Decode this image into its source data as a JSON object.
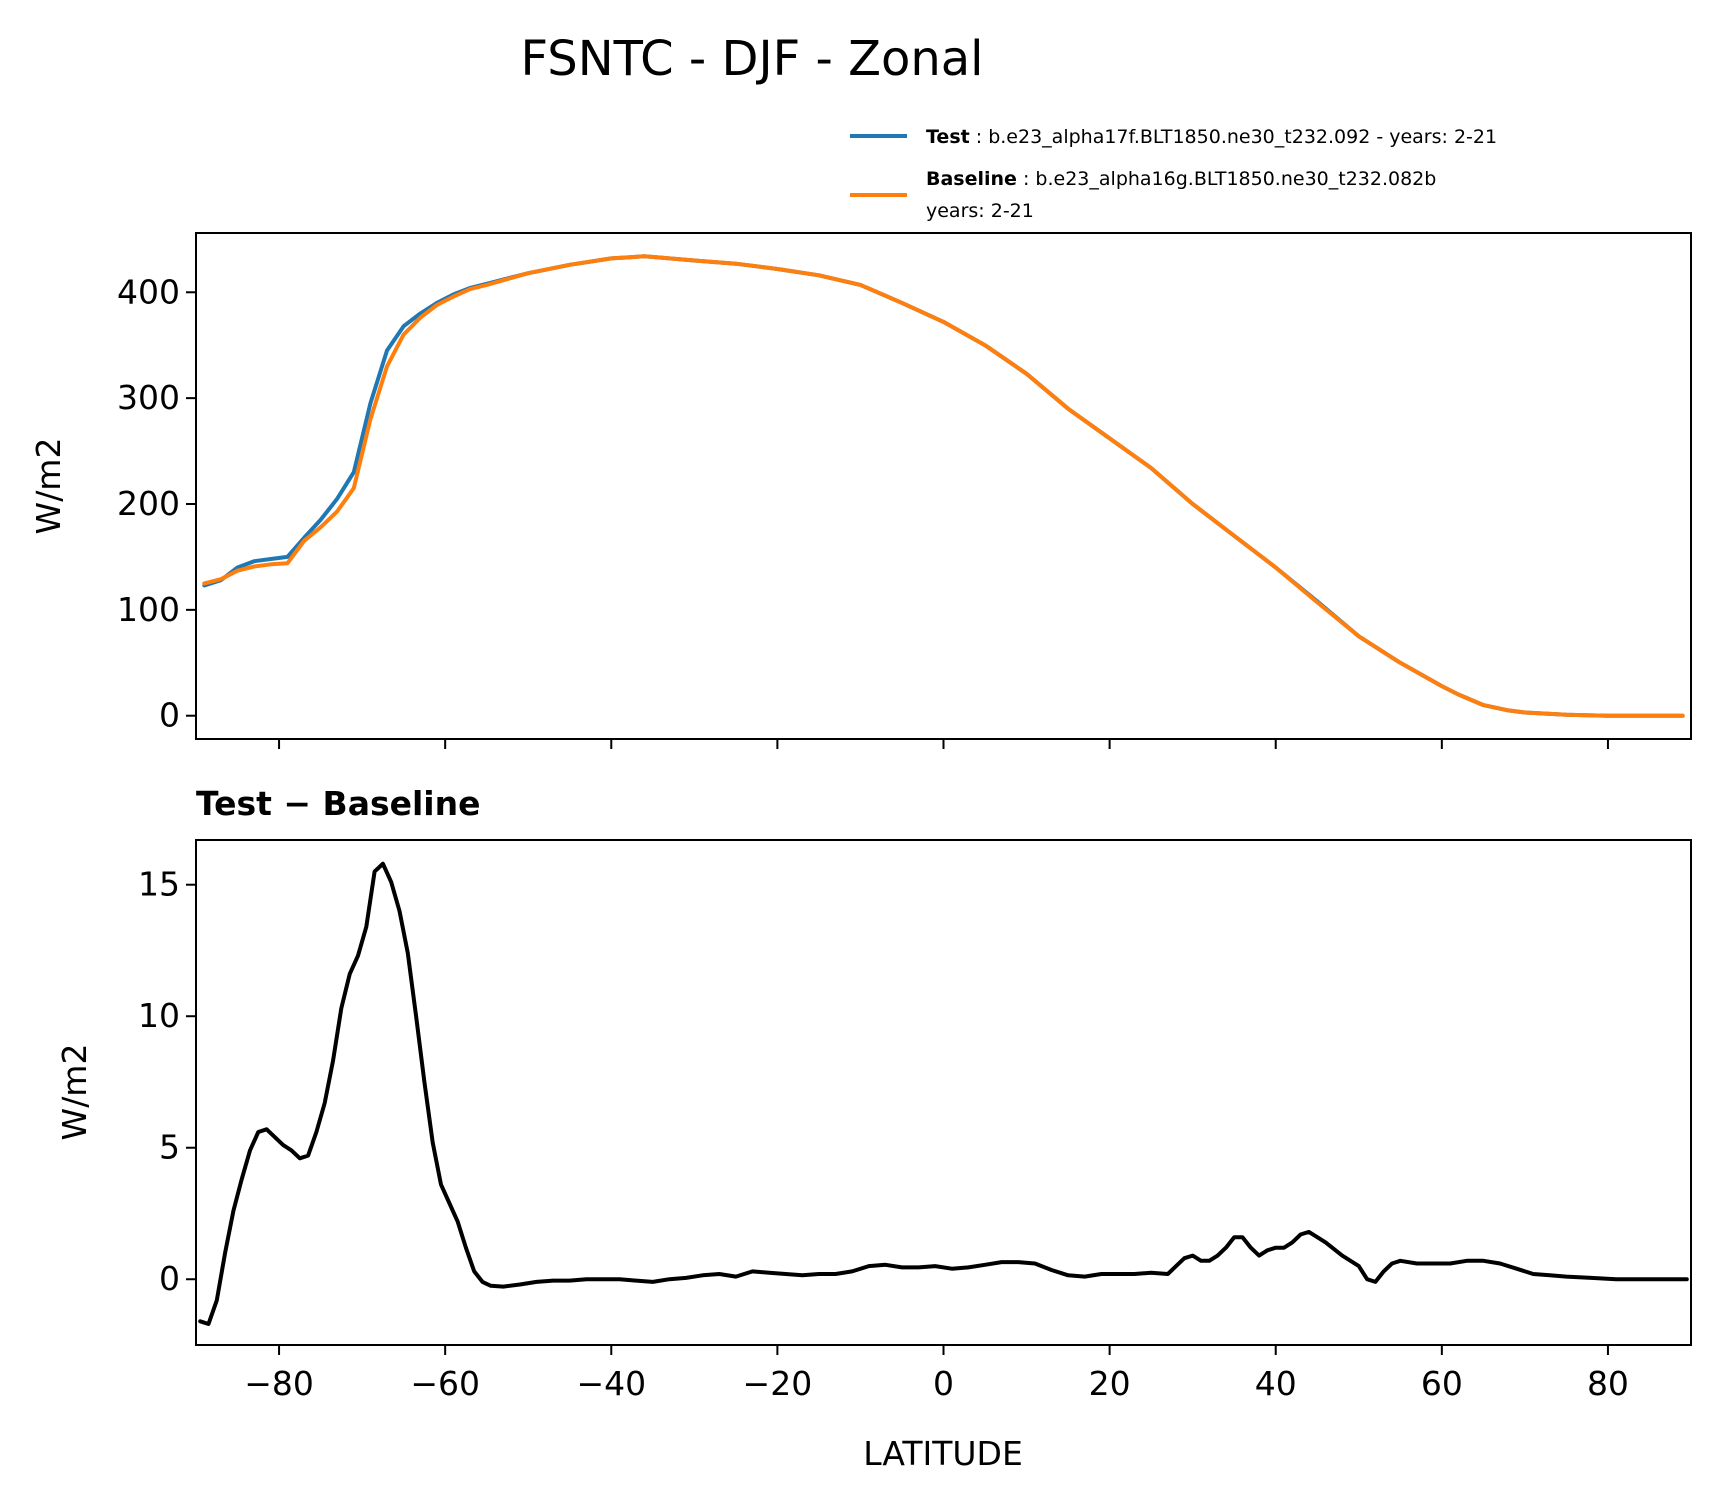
{
  "figure": {
    "title": "FSNTC - DJF - Zonal",
    "legend": [
      {
        "bold": "Test",
        "text": ": b.e23_alpha17f.BLT1850.ne30_t232.092 - years: 2-21",
        "text2": "",
        "color": "#1f77b4"
      },
      {
        "bold": "Baseline",
        "text": ": b.e23_alpha16g.BLT1850.ne30_t232.082b",
        "text2": "years: 2-21",
        "color": "#ff7f0e"
      }
    ]
  },
  "chart_data": [
    {
      "type": "line",
      "title": "",
      "xlabel": "",
      "ylabel": "W/m2",
      "xlim": [
        -90,
        90
      ],
      "ylim": [
        -22,
        456
      ],
      "xticks": [
        -80,
        -60,
        -40,
        -20,
        0,
        20,
        40,
        60,
        80
      ],
      "xtick_labels_visible": false,
      "yticks": [
        0,
        100,
        200,
        300,
        400
      ],
      "ytick_labels": [
        "0",
        "100",
        "200",
        "300",
        "400"
      ],
      "grid": false,
      "series": [
        {
          "name": "Test",
          "color": "#1f77b4",
          "x": [
            -89,
            -87,
            -85,
            -83,
            -81,
            -79,
            -77,
            -75,
            -73,
            -71,
            -69,
            -67,
            -65,
            -63,
            -61,
            -59,
            -57,
            -55,
            -50,
            -45,
            -40,
            -36,
            -30,
            -25,
            -20,
            -15,
            -10,
            -5,
            0,
            5,
            10,
            15,
            20,
            25,
            30,
            35,
            40,
            45,
            50,
            55,
            60,
            62,
            65,
            68,
            70,
            75,
            80,
            85,
            89
          ],
          "y": [
            123,
            128,
            140,
            146,
            148,
            150,
            168,
            185,
            205,
            230,
            295,
            345,
            368,
            380,
            390,
            398,
            404,
            408,
            418,
            426,
            432,
            434,
            430,
            427,
            422,
            416,
            407,
            390,
            372,
            350,
            323,
            290,
            262,
            234,
            200,
            170,
            140,
            108,
            75,
            50,
            28,
            20,
            10,
            5,
            3,
            1,
            0,
            0,
            0
          ]
        },
        {
          "name": "Baseline",
          "color": "#ff7f0e",
          "x": [
            -89,
            -87,
            -85,
            -83,
            -81,
            -79,
            -77,
            -75,
            -73,
            -71,
            -69,
            -67,
            -65,
            -63,
            -61,
            -59,
            -57,
            -55,
            -50,
            -45,
            -40,
            -36,
            -30,
            -25,
            -20,
            -15,
            -10,
            -5,
            0,
            5,
            10,
            15,
            20,
            25,
            30,
            35,
            40,
            45,
            50,
            55,
            60,
            62,
            65,
            68,
            70,
            75,
            80,
            85,
            89
          ],
          "y": [
            125,
            129,
            137,
            141,
            143,
            144,
            165,
            178,
            193,
            215,
            280,
            330,
            360,
            376,
            388,
            396,
            403,
            407,
            418,
            426,
            432,
            434,
            430,
            427,
            422,
            416,
            407,
            390,
            372,
            350,
            323,
            290,
            262,
            234,
            200,
            170,
            140,
            107,
            75,
            50,
            28,
            20,
            10,
            5,
            3,
            1,
            0,
            0,
            0
          ]
        }
      ]
    },
    {
      "type": "line",
      "title": "Test − Baseline",
      "xlabel": "LATITUDE",
      "ylabel": "W/m2",
      "xlim": [
        -90,
        90
      ],
      "ylim": [
        -2.5,
        16.7
      ],
      "xticks": [
        -80,
        -60,
        -40,
        -20,
        0,
        20,
        40,
        60,
        80
      ],
      "xtick_labels": [
        "−80",
        "−60",
        "−40",
        "−20",
        "0",
        "20",
        "40",
        "60",
        "80"
      ],
      "yticks": [
        0,
        5,
        10,
        15
      ],
      "ytick_labels": [
        "0",
        "5",
        "10",
        "15"
      ],
      "grid": false,
      "series": [
        {
          "color": "#000000",
          "x": [
            -89.5,
            -88.5,
            -87.5,
            -86.5,
            -85.5,
            -84.5,
            -83.5,
            -82.5,
            -81.5,
            -80.5,
            -79.5,
            -78.5,
            -77.5,
            -76.5,
            -75.5,
            -74.5,
            -73.5,
            -72.5,
            -71.5,
            -70.5,
            -69.5,
            -68.5,
            -67.5,
            -66.5,
            -65.5,
            -64.5,
            -63.5,
            -62.5,
            -61.5,
            -60.5,
            -59.5,
            -58.5,
            -57.5,
            -56.5,
            -55.5,
            -54.5,
            -53,
            -51,
            -49,
            -47,
            -45,
            -43,
            -41,
            -39,
            -37,
            -35,
            -33,
            -31,
            -29,
            -27,
            -25,
            -23,
            -21,
            -19,
            -17,
            -15,
            -13,
            -11,
            -9,
            -7,
            -5,
            -3,
            -1,
            1,
            3,
            5,
            7,
            9,
            11,
            13,
            15,
            17,
            19,
            21,
            23,
            25,
            27,
            28,
            29,
            30,
            31,
            32,
            33,
            34,
            35,
            36,
            37,
            38,
            39,
            40,
            41,
            42,
            43,
            44,
            45,
            46,
            48,
            50,
            51,
            52,
            53,
            54,
            55,
            57,
            59,
            61,
            63,
            65,
            67,
            69,
            71,
            73,
            75,
            78,
            81,
            84,
            87,
            89.5
          ],
          "y": [
            -1.6,
            -1.7,
            -0.8,
            1.0,
            2.6,
            3.8,
            4.9,
            5.6,
            5.7,
            5.4,
            5.1,
            4.9,
            4.6,
            4.7,
            5.6,
            6.7,
            8.3,
            10.3,
            11.6,
            12.3,
            13.4,
            15.5,
            15.8,
            15.1,
            14.0,
            12.4,
            10.0,
            7.5,
            5.2,
            3.6,
            2.9,
            2.2,
            1.2,
            0.3,
            -0.1,
            -0.25,
            -0.28,
            -0.2,
            -0.1,
            -0.05,
            -0.05,
            0.0,
            0.0,
            0.0,
            -0.05,
            -0.1,
            0.0,
            0.05,
            0.15,
            0.2,
            0.1,
            0.3,
            0.25,
            0.2,
            0.15,
            0.2,
            0.2,
            0.3,
            0.5,
            0.55,
            0.45,
            0.45,
            0.5,
            0.4,
            0.45,
            0.55,
            0.65,
            0.65,
            0.6,
            0.35,
            0.15,
            0.1,
            0.2,
            0.2,
            0.2,
            0.25,
            0.2,
            0.5,
            0.8,
            0.9,
            0.7,
            0.7,
            0.9,
            1.2,
            1.6,
            1.6,
            1.2,
            0.9,
            1.1,
            1.2,
            1.2,
            1.4,
            1.7,
            1.8,
            1.6,
            1.4,
            0.9,
            0.5,
            0.0,
            -0.1,
            0.3,
            0.6,
            0.7,
            0.6,
            0.6,
            0.6,
            0.7,
            0.7,
            0.6,
            0.4,
            0.2,
            0.15,
            0.1,
            0.05,
            0.0,
            0.0,
            0.0,
            0.0
          ]
        }
      ]
    }
  ]
}
